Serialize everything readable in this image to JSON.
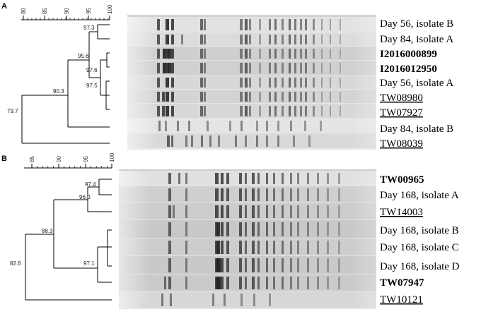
{
  "panels": [
    {
      "letter": "A",
      "scale_ticks": [
        "80",
        "85",
        "90",
        "95",
        "100"
      ],
      "node_values": [
        "97.3",
        "95.6",
        "97.6",
        "97.5",
        "90.3",
        "79.7"
      ],
      "isolates": [
        {
          "label": "Day 56, isolate B",
          "style": "plain"
        },
        {
          "label": "Day 84, isolate A",
          "style": "plain"
        },
        {
          "label": "I2016000899",
          "style": "bold"
        },
        {
          "label": "I2016012950",
          "style": "bold"
        },
        {
          "label": "Day 56, isolate A",
          "style": "plain"
        },
        {
          "label": "TW08980",
          "style": "underline"
        },
        {
          "label": "TW07927",
          "style": "underline"
        },
        {
          "label": "Day 84, isolate B",
          "style": "plain"
        },
        {
          "label": "TW08039",
          "style": "underline"
        }
      ]
    },
    {
      "letter": "B",
      "scale_ticks": [
        "85",
        "90",
        "95",
        "100"
      ],
      "node_values": [
        "97.4",
        "96.0",
        "88.3",
        "97.1",
        "82.6"
      ],
      "isolates": [
        {
          "label": "TW00965",
          "style": "bold"
        },
        {
          "label": "Day 168, isolate A",
          "style": "plain"
        },
        {
          "label": "TW14003",
          "style": "underline"
        },
        {
          "label": "Day 168, isolate B",
          "style": "plain"
        },
        {
          "label": "Day 168, isolate C",
          "style": "plain"
        },
        {
          "label": "Day 168, isolate D",
          "style": "plain"
        },
        {
          "label": "TW07947",
          "style": "bold"
        },
        {
          "label": "TW10121",
          "style": "underline"
        }
      ]
    }
  ]
}
